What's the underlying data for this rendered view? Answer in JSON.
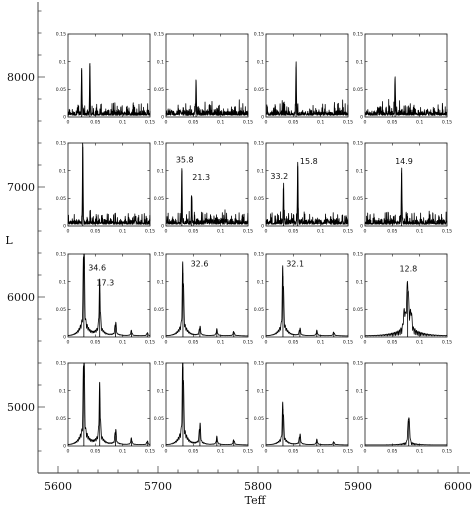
{
  "chart_data": {
    "type": "line",
    "xlabel": "Teff",
    "ylabel": "L",
    "x_ticks": [
      "5600",
      "5700",
      "5800",
      "5900",
      "6000"
    ],
    "y_ticks": [
      "8000",
      "7000",
      "6000",
      "5000"
    ],
    "inset_x_ticks": [
      "0",
      "0.05",
      "0.1",
      "0.15"
    ],
    "inset_y_ticks": [
      "0",
      "0.05",
      "0.1",
      "0.15"
    ],
    "inset_xlim": [
      0,
      0.15
    ],
    "inset_ylim": [
      0,
      0.15
    ],
    "grid": false,
    "panels": [
      {
        "row": 0,
        "col": 0,
        "style": "noisy",
        "peaks": [
          {
            "f": 0.025,
            "a": 0.085
          },
          {
            "f": 0.04,
            "a": 0.092
          }
        ],
        "annotations": []
      },
      {
        "row": 0,
        "col": 1,
        "style": "noisy",
        "peaks": [
          {
            "f": 0.055,
            "a": 0.063
          }
        ],
        "annotations": []
      },
      {
        "row": 0,
        "col": 2,
        "style": "noisy",
        "peaks": [
          {
            "f": 0.055,
            "a": 0.09
          }
        ],
        "annotations": []
      },
      {
        "row": 0,
        "col": 3,
        "style": "noisy",
        "peaks": [
          {
            "f": 0.055,
            "a": 0.068
          }
        ],
        "annotations": []
      },
      {
        "row": 1,
        "col": 0,
        "style": "noisy",
        "peaks": [
          {
            "f": 0.027,
            "a": 0.143
          }
        ],
        "annotations": []
      },
      {
        "row": 1,
        "col": 1,
        "style": "noisy",
        "peaks": [
          {
            "f": 0.029,
            "a": 0.1
          },
          {
            "f": 0.047,
            "a": 0.05
          }
        ],
        "annotations": [
          {
            "text": "35.8",
            "f": 0.018,
            "a": 0.115
          },
          {
            "text": "21.3",
            "f": 0.048,
            "a": 0.083
          }
        ]
      },
      {
        "row": 1,
        "col": 2,
        "style": "noisy",
        "peaks": [
          {
            "f": 0.032,
            "a": 0.062
          },
          {
            "f": 0.058,
            "a": 0.108
          }
        ],
        "annotations": [
          {
            "text": "33.2",
            "f": 0.008,
            "a": 0.085
          },
          {
            "text": "15.8",
            "f": 0.062,
            "a": 0.112
          }
        ]
      },
      {
        "row": 1,
        "col": 3,
        "style": "noisy",
        "peaks": [
          {
            "f": 0.067,
            "a": 0.096
          }
        ],
        "annotations": [
          {
            "text": "14.9",
            "f": 0.055,
            "a": 0.112
          }
        ]
      },
      {
        "row": 2,
        "col": 0,
        "style": "comb",
        "peaks": [
          {
            "f": 0.029,
            "a": 0.15
          },
          {
            "f": 0.058,
            "a": 0.079
          },
          {
            "f": 0.087,
            "a": 0.022
          },
          {
            "f": 0.116,
            "a": 0.008
          },
          {
            "f": 0.145,
            "a": 0.005
          }
        ],
        "annotations": [
          {
            "text": "34.6",
            "f": 0.037,
            "a": 0.12
          },
          {
            "text": "17.3",
            "f": 0.052,
            "a": 0.093
          }
        ]
      },
      {
        "row": 2,
        "col": 1,
        "style": "comb",
        "peaks": [
          {
            "f": 0.031,
            "a": 0.116
          },
          {
            "f": 0.062,
            "a": 0.015
          },
          {
            "f": 0.093,
            "a": 0.01
          },
          {
            "f": 0.124,
            "a": 0.007
          }
        ],
        "annotations": [
          {
            "text": "32.6",
            "f": 0.045,
            "a": 0.127
          }
        ]
      },
      {
        "row": 2,
        "col": 2,
        "style": "comb",
        "peaks": [
          {
            "f": 0.031,
            "a": 0.11
          },
          {
            "f": 0.062,
            "a": 0.012
          },
          {
            "f": 0.093,
            "a": 0.008
          },
          {
            "f": 0.124,
            "a": 0.006
          }
        ],
        "annotations": [
          {
            "text": "32.1",
            "f": 0.037,
            "a": 0.127
          }
        ]
      },
      {
        "row": 2,
        "col": 3,
        "style": "wide",
        "peaks": [
          {
            "f": 0.078,
            "a": 0.082
          }
        ],
        "annotations": [
          {
            "text": "12.8",
            "f": 0.063,
            "a": 0.118
          }
        ]
      },
      {
        "row": 3,
        "col": 0,
        "style": "comb",
        "peaks": [
          {
            "f": 0.029,
            "a": 0.15
          },
          {
            "f": 0.058,
            "a": 0.087
          },
          {
            "f": 0.087,
            "a": 0.025
          },
          {
            "f": 0.116,
            "a": 0.01
          },
          {
            "f": 0.145,
            "a": 0.006
          }
        ],
        "annotations": []
      },
      {
        "row": 3,
        "col": 1,
        "style": "comb",
        "peaks": [
          {
            "f": 0.031,
            "a": 0.143
          },
          {
            "f": 0.062,
            "a": 0.034
          },
          {
            "f": 0.093,
            "a": 0.012
          },
          {
            "f": 0.124,
            "a": 0.008
          }
        ],
        "annotations": []
      },
      {
        "row": 3,
        "col": 2,
        "style": "comb",
        "peaks": [
          {
            "f": 0.031,
            "a": 0.067
          },
          {
            "f": 0.062,
            "a": 0.017
          },
          {
            "f": 0.093,
            "a": 0.008
          },
          {
            "f": 0.124,
            "a": 0.005
          }
        ],
        "annotations": []
      },
      {
        "row": 3,
        "col": 3,
        "style": "single",
        "peaks": [
          {
            "f": 0.08,
            "a": 0.046
          }
        ],
        "annotations": []
      }
    ]
  }
}
